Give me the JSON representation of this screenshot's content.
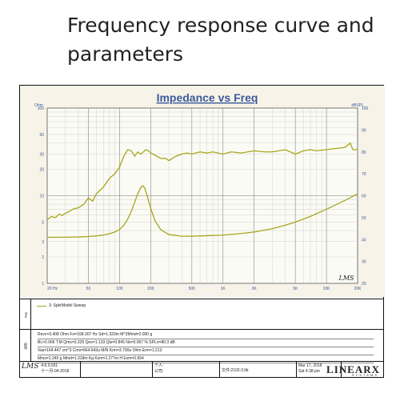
{
  "page": {
    "heading": "Frequency response curve and\nparameters"
  },
  "chart_data": {
    "type": "line",
    "title": "Impedance vs Freq",
    "x_scale": "log",
    "xlim": [
      20,
      20000
    ],
    "x_ticks": [
      20,
      50,
      100,
      200,
      500,
      1000,
      2000,
      5000,
      10000,
      20000
    ],
    "x_tick_labels": [
      "20 Hz",
      "50",
      "100",
      "200",
      "500",
      "1K",
      "2K",
      "5K",
      "10K",
      "20K"
    ],
    "left_axis": {
      "unit": "Ohm",
      "scale": "log",
      "lim": [
        1,
        100
      ],
      "ticks": [
        1,
        2,
        3,
        5,
        10,
        20,
        30,
        50,
        100
      ],
      "tick_labels": [
        "1",
        "2",
        "3",
        "5",
        "10",
        "20",
        "30",
        "50",
        "100"
      ]
    },
    "right_axis": {
      "unit": "dBSPL",
      "scale": "linear",
      "lim": [
        20,
        100
      ],
      "ticks": [
        20,
        30,
        40,
        50,
        60,
        70,
        80,
        90,
        100
      ],
      "tick_labels": [
        "20",
        "30",
        "40",
        "50",
        "60",
        "70",
        "80",
        "90",
        "100"
      ]
    },
    "series": [
      {
        "axis": "right",
        "color": "#a6a61a",
        "x": [
          20,
          22,
          24,
          26,
          28,
          30,
          33,
          36,
          40,
          45,
          50,
          55,
          60,
          65,
          70,
          75,
          80,
          90,
          100,
          110,
          120,
          130,
          140,
          150,
          160,
          170,
          180,
          190,
          200,
          220,
          250,
          280,
          300,
          350,
          400,
          450,
          500,
          600,
          700,
          800,
          1000,
          1200,
          1500,
          2000,
          2500,
          3000,
          4000,
          5000,
          6000,
          7000,
          8000,
          10000,
          12000,
          15000,
          17000,
          18000,
          20000
        ],
        "y": [
          49,
          50.5,
          50,
          51.5,
          51,
          52,
          53,
          54,
          54.5,
          56,
          59,
          57.5,
          61,
          62.5,
          64,
          66,
          68,
          70,
          73,
          78,
          81,
          80.5,
          78,
          80,
          79,
          80,
          81,
          80.5,
          79.5,
          78.5,
          77,
          77,
          76,
          78,
          79,
          79.5,
          79,
          80,
          79.5,
          80,
          79,
          80,
          79.5,
          80.5,
          80,
          80,
          81,
          79,
          80.5,
          81,
          80.5,
          81,
          81.5,
          82,
          84,
          81,
          81
        ]
      },
      {
        "axis": "left",
        "color": "#a6a61a",
        "x": [
          20,
          30,
          40,
          50,
          60,
          70,
          80,
          90,
          100,
          110,
          120,
          130,
          140,
          150,
          160,
          168,
          175,
          185,
          200,
          220,
          250,
          300,
          400,
          500,
          700,
          1000,
          1500,
          2000,
          3000,
          4000,
          5000,
          7000,
          10000,
          15000,
          20000
        ],
        "y": [
          3.35,
          3.36,
          3.38,
          3.42,
          3.48,
          3.56,
          3.68,
          3.85,
          4.1,
          4.6,
          5.4,
          6.6,
          8.4,
          10.5,
          12.3,
          13.0,
          12.3,
          10.0,
          7.2,
          5.2,
          4.1,
          3.6,
          3.45,
          3.45,
          3.5,
          3.55,
          3.7,
          3.85,
          4.2,
          4.6,
          5.0,
          5.8,
          7.0,
          8.8,
          10.5
        ]
      }
    ]
  },
  "footer_block": {
    "chart_footer_label": "LMS",
    "map_label": "Map",
    "legend_entry": "3: SpkrModel Sweep",
    "info_label": "說明",
    "params": [
      "Revc=3.408 Ohm  Fo=168.307 Hz  Sd=1.320m M^2Mmd=2.000 g",
      "BL=2.066 T.M  Qms=3.325  Qes=1.133  Qts=0.845  No=0.067 %  SPLo=80.3 dB",
      "Vas=164.447 cm^3 Cms=664.643u M/N  Krm=3.790u Ohm  Erm=1.213",
      "Mms=1.345 g  Mmd=1.318m Kg  Kxm=2.277m H  Exm=0.654"
    ],
    "logo_text": "LMS",
    "version": "4.6.0.031",
    "date_short": "十一月-04-2018",
    "person_label": "个人:",
    "company_label": "公司:",
    "file_label": "文件:2102-3.lib",
    "date_long": "Mar 17, 2018",
    "time": "Sat  4:38 pm",
    "brand": "LINEARX",
    "brand_sub": "SYSTEMS"
  }
}
